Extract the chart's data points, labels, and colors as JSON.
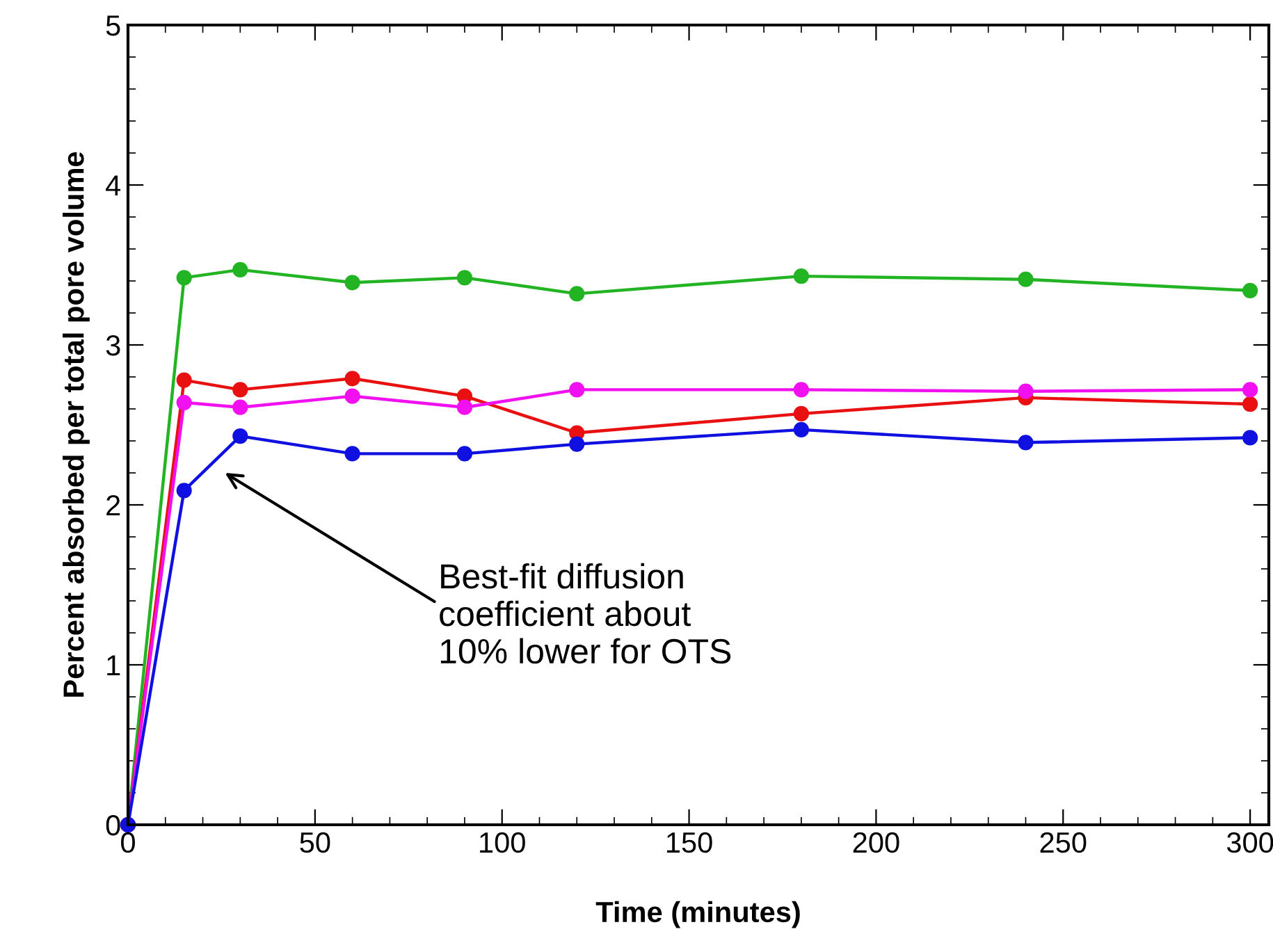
{
  "chart_data": {
    "type": "line",
    "xlabel": "Time (minutes)",
    "ylabel": "Percent absorbed per total pore volume",
    "x": [
      0,
      15,
      30,
      60,
      90,
      120,
      180,
      240,
      300
    ],
    "series": [
      {
        "color": "#22b422",
        "values": [
          0,
          3.42,
          3.47,
          3.39,
          3.42,
          3.32,
          3.43,
          3.41,
          3.34
        ]
      },
      {
        "color": "#e81010",
        "values": [
          0,
          2.78,
          2.72,
          2.79,
          2.68,
          2.45,
          2.57,
          2.67,
          2.63
        ]
      },
      {
        "color": "#f010f0",
        "values": [
          0,
          2.64,
          2.61,
          2.68,
          2.61,
          2.72,
          2.72,
          2.71,
          2.72
        ]
      },
      {
        "color": "#1010e0",
        "values": [
          0,
          2.09,
          2.43,
          2.32,
          2.32,
          2.38,
          2.47,
          2.39,
          2.42
        ]
      }
    ],
    "xlim": [
      0,
      305
    ],
    "xticks": [
      0,
      50,
      100,
      150,
      200,
      250,
      300
    ],
    "ylim": [
      0,
      5
    ],
    "yticks": [
      0,
      1,
      2,
      3,
      4,
      5
    ],
    "marker": "circle",
    "line_style": "solid",
    "grid": false,
    "legend": false,
    "annotations": [
      "Best-fit diffusion\ncoefficient about\n10% lower for OTS"
    ]
  }
}
